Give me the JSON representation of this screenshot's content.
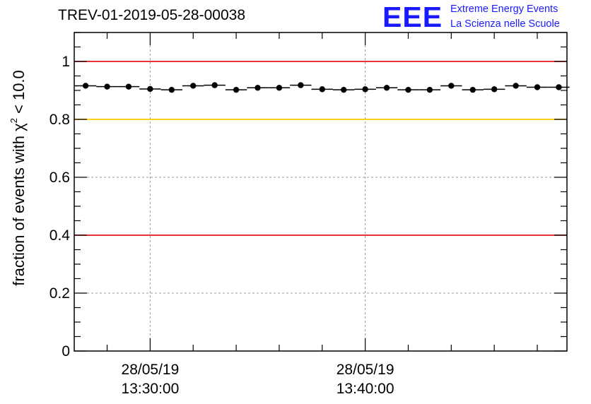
{
  "header": {
    "title": "TREV-01-2019-05-28-00038"
  },
  "logo": {
    "mark": "EEE",
    "line1": "Extreme Energy Events",
    "line2": "La Scienza nelle Scuole"
  },
  "colors": {
    "limit_red": "#e8141b",
    "limit_yellow": "#ffc800",
    "data": "#000000",
    "grid": "#9a9a9a"
  },
  "chart_data": {
    "type": "scatter",
    "title": "TREV-01-2019-05-28-00038",
    "xlabel": "",
    "ylabel_prefix": "fraction of events with ",
    "ylabel_symbol": "χ",
    "ylabel_power": "2",
    "ylabel_suffix": " < 10.0",
    "ylim": [
      0,
      1.1
    ],
    "yticks": [
      0,
      0.2,
      0.4,
      0.6,
      0.8,
      1
    ],
    "ytick_labels": [
      "0",
      "0.2",
      "0.4",
      "0.6",
      "0.8",
      "1"
    ],
    "xlim_minutes": [
      -3.53,
      19.38
    ],
    "xticks_minutes": [
      0,
      10
    ],
    "xtick_labels": [
      {
        "date": "28/05/19",
        "time": "13:30:00"
      },
      {
        "date": "28/05/19",
        "time": "13:40:00"
      }
    ],
    "x_start_time": "13:30:00",
    "bin_width_minutes": 1,
    "grid": true,
    "reference_lines": [
      {
        "y": 1.0,
        "color": "#e8141b"
      },
      {
        "y": 0.8,
        "color": "#ffc800"
      },
      {
        "y": 0.4,
        "color": "#e8141b"
      }
    ],
    "series": [
      {
        "name": "fraction",
        "x_minutes": [
          -3,
          -2,
          -1,
          0,
          1,
          2,
          3,
          4,
          5,
          6,
          7,
          8,
          9,
          10,
          11,
          12,
          13,
          14,
          15,
          16,
          17,
          18,
          19
        ],
        "values": [
          0.916,
          0.913,
          0.913,
          0.905,
          0.902,
          0.916,
          0.918,
          0.902,
          0.909,
          0.909,
          0.918,
          0.904,
          0.902,
          0.904,
          0.909,
          0.902,
          0.902,
          0.916,
          0.902,
          0.904,
          0.916,
          0.911,
          0.911
        ]
      }
    ]
  }
}
